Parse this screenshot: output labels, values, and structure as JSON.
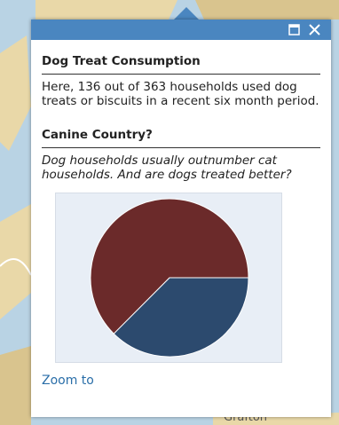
{
  "map": {
    "label": "Grafton"
  },
  "popup": {
    "title": "Dog Treat Consumption",
    "text": "Here, 136 out of 363 households used dog treats or biscuits in a recent six month period.",
    "section_title": "Canine Country?",
    "section_text": "Dog households usually outnumber cat households. And are dogs treated better?",
    "link": "Zoom to"
  },
  "chart_data": {
    "type": "pie",
    "values": [
      136,
      227
    ],
    "colors": [
      "#2c4a6e",
      "#6b2a2a"
    ],
    "start_angle": 90,
    "direction": "clockwise"
  }
}
